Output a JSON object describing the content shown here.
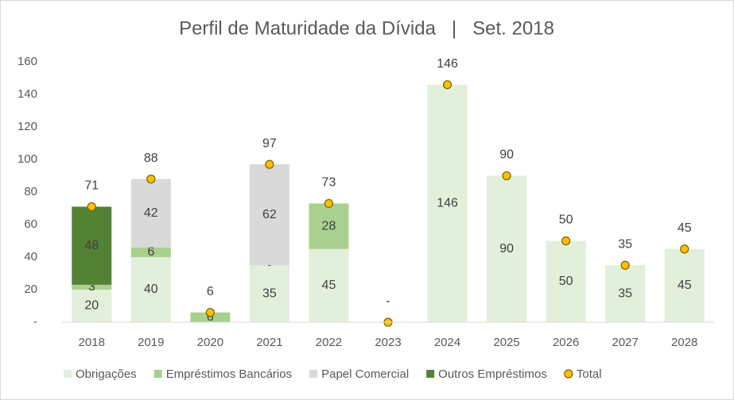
{
  "chart_data": {
    "type": "stacked-bar",
    "title": "Perfil de Maturidade da Dívida   |   Set. 2018",
    "categories": [
      "2018",
      "2019",
      "2020",
      "2021",
      "2022",
      "2023",
      "2024",
      "2025",
      "2026",
      "2027",
      "2028"
    ],
    "series": [
      {
        "name": "Obrigações",
        "color": "#e2efda",
        "values": [
          20,
          40,
          0,
          35,
          45,
          0,
          146,
          90,
          50,
          35,
          45
        ],
        "value_labels": [
          "20",
          "40",
          null,
          "35",
          "45",
          null,
          "146",
          "90",
          "50",
          "35",
          "45"
        ]
      },
      {
        "name": "Empréstimos Bancários",
        "color": "#a9d08e",
        "values": [
          3,
          6,
          6,
          0,
          28,
          0,
          0,
          0,
          0,
          0,
          0
        ],
        "value_labels": [
          "3",
          "6",
          "6",
          "-",
          "28",
          null,
          null,
          null,
          null,
          null,
          null
        ]
      },
      {
        "name": "Papel Comercial",
        "color": "#d9d9d9",
        "values": [
          0,
          42,
          0,
          62,
          0,
          0,
          0,
          0,
          0,
          0,
          0
        ],
        "value_labels": [
          null,
          "42",
          null,
          "62",
          null,
          null,
          null,
          null,
          null,
          null,
          null
        ]
      },
      {
        "name": "Outros Empréstimos",
        "color": "#548235",
        "values": [
          48,
          0,
          0,
          0,
          0,
          0,
          0,
          0,
          0,
          0,
          0
        ],
        "value_labels": [
          "48",
          null,
          null,
          null,
          null,
          null,
          null,
          null,
          null,
          null,
          null
        ]
      }
    ],
    "total": {
      "name": "Total",
      "color": "#ffc000",
      "values": [
        71,
        88,
        6,
        97,
        73,
        0,
        146,
        90,
        50,
        35,
        45
      ],
      "value_labels": [
        "71",
        "88",
        "6",
        "97",
        "73",
        "-",
        "146",
        "90",
        "50",
        "35",
        "45"
      ]
    },
    "ylim": [
      0,
      160
    ],
    "yticks": [
      {
        "value": 0,
        "label": "-"
      },
      20,
      40,
      60,
      80,
      100,
      120,
      140,
      160
    ],
    "grid": false
  }
}
